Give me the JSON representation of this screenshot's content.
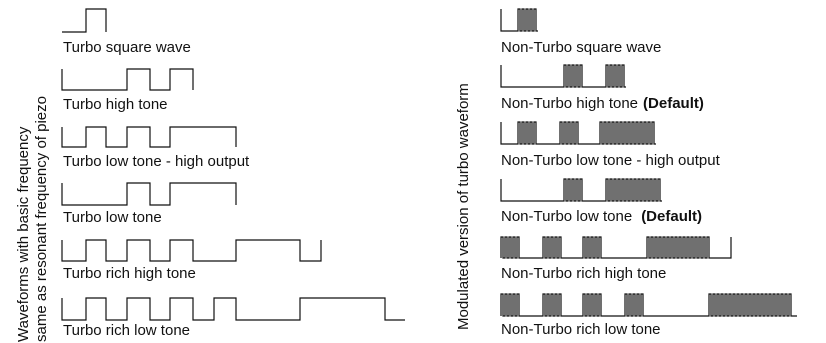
{
  "left_panel": {
    "side_title_line1": "Waveforms with basic frequency",
    "side_title_line2": "same as resonant frequency of piezo",
    "items": [
      {
        "label": "Turbo square wave"
      },
      {
        "label": "Turbo high tone"
      },
      {
        "label": "Turbo low tone - high output"
      },
      {
        "label": "Turbo low tone"
      },
      {
        "label": "Turbo rich high tone"
      },
      {
        "label": "Turbo rich low tone"
      }
    ]
  },
  "right_panel": {
    "side_title": "Modulated version of turbo waveform",
    "items": [
      {
        "label": "Non-Turbo square wave",
        "suffix": ""
      },
      {
        "label": "Non-Turbo high tone",
        "suffix": "(Default)"
      },
      {
        "label": "Non-Turbo low tone - high output",
        "suffix": ""
      },
      {
        "label": "Non-Turbo low tone",
        "suffix": "(Default)"
      },
      {
        "label": "Non-Turbo rich high tone",
        "suffix": ""
      },
      {
        "label": "Non-Turbo rich low tone",
        "suffix": ""
      }
    ]
  }
}
